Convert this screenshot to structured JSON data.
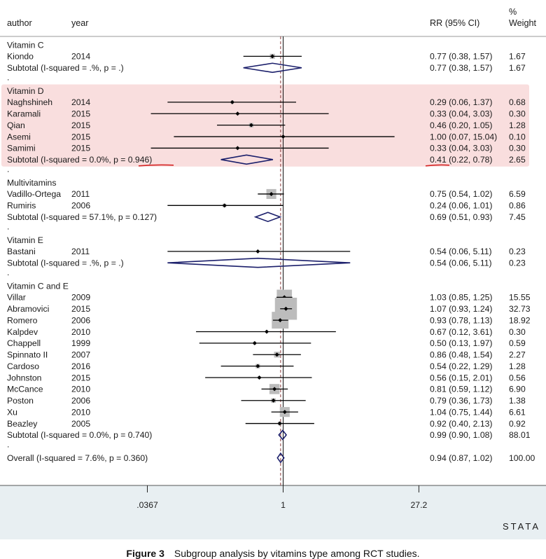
{
  "headers": {
    "author": "author",
    "year": "year",
    "rrci": "RR (95% CI)",
    "weight_top": "%",
    "weight_bottom": "Weight"
  },
  "axis": {
    "ticks": [
      {
        "value": 0.0367,
        "label": ".0367"
      },
      {
        "value": 1,
        "label": "1"
      },
      {
        "value": 27.2,
        "label": "27.2"
      }
    ],
    "scale": "log",
    "null_value": 1,
    "overall_value": 0.94
  },
  "watermark": "STATA",
  "highlight_color": "#f9dede",
  "colors": {
    "diamond": "#1b1f6b",
    "box": "#bcbcbc",
    "dashed": "#8a3a3a",
    "underline": "#d42323"
  },
  "caption": {
    "label": "Figure 3",
    "text": "Subgroup analysis by vitamins type among RCT studies."
  },
  "chart_data": {
    "type": "forest",
    "measure": "RR (95% CI)",
    "rows": [
      {
        "kind": "group",
        "label": "Vitamin C"
      },
      {
        "kind": "study",
        "author": "Kiondo",
        "year": "2014",
        "rr": 0.77,
        "lo": 0.38,
        "hi": 1.57,
        "ci": "0.77 (0.38, 1.57)",
        "weight": "1.67"
      },
      {
        "kind": "subtotal",
        "label": "Subtotal  (I-squared = .%, p = .)",
        "rr": 0.77,
        "lo": 0.38,
        "hi": 1.57,
        "ci": "0.77 (0.38, 1.57)",
        "weight": "1.67"
      },
      {
        "kind": "dot",
        "label": "."
      },
      {
        "kind": "group",
        "label": "Vitamin D"
      },
      {
        "kind": "study",
        "author": "Naghshineh",
        "year": "2014",
        "rr": 0.29,
        "lo": 0.06,
        "hi": 1.37,
        "ci": "0.29 (0.06, 1.37)",
        "weight": "0.68"
      },
      {
        "kind": "study",
        "author": "Karamali",
        "year": "2015",
        "rr": 0.33,
        "lo": 0.04,
        "hi": 3.03,
        "ci": "0.33 (0.04, 3.03)",
        "weight": "0.30"
      },
      {
        "kind": "study",
        "author": "Qian",
        "year": "2015",
        "rr": 0.46,
        "lo": 0.2,
        "hi": 1.05,
        "ci": "0.46 (0.20, 1.05)",
        "weight": "1.28"
      },
      {
        "kind": "study",
        "author": "Asemi",
        "year": "2015",
        "rr": 1.0,
        "lo": 0.07,
        "hi": 15.04,
        "ci": "1.00 (0.07, 15.04)",
        "weight": "0.10"
      },
      {
        "kind": "study",
        "author": "Samimi",
        "year": "2015",
        "rr": 0.33,
        "lo": 0.04,
        "hi": 3.03,
        "ci": "0.33 (0.04, 3.03)",
        "weight": "0.30"
      },
      {
        "kind": "subtotal",
        "label": "Subtotal  (I-squared = 0.0%, p = 0.946)",
        "rr": 0.41,
        "lo": 0.22,
        "hi": 0.78,
        "ci": "0.41 (0.22, 0.78)",
        "weight": "2.65"
      },
      {
        "kind": "dot",
        "label": "."
      },
      {
        "kind": "group",
        "label": "Multivitamins"
      },
      {
        "kind": "study",
        "author": "Vadillo-Ortega",
        "year": "2011",
        "rr": 0.75,
        "lo": 0.54,
        "hi": 1.02,
        "ci": "0.75 (0.54, 1.02)",
        "weight": "6.59"
      },
      {
        "kind": "study",
        "author": "Rumiris",
        "year": "2006",
        "rr": 0.24,
        "lo": 0.06,
        "hi": 1.01,
        "ci": "0.24 (0.06, 1.01)",
        "weight": "0.86"
      },
      {
        "kind": "subtotal",
        "label": "Subtotal  (I-squared = 57.1%, p = 0.127)",
        "rr": 0.69,
        "lo": 0.51,
        "hi": 0.93,
        "ci": "0.69 (0.51, 0.93)",
        "weight": "7.45"
      },
      {
        "kind": "dot",
        "label": "."
      },
      {
        "kind": "group",
        "label": "Vitamin E"
      },
      {
        "kind": "study",
        "author": "Bastani",
        "year": "2011",
        "rr": 0.54,
        "lo": 0.06,
        "hi": 5.11,
        "ci": "0.54 (0.06, 5.11)",
        "weight": "0.23"
      },
      {
        "kind": "subtotal",
        "label": "Subtotal  (I-squared = .%, p = .)",
        "rr": 0.54,
        "lo": 0.06,
        "hi": 5.11,
        "ci": "0.54 (0.06, 5.11)",
        "weight": "0.23"
      },
      {
        "kind": "dot",
        "label": "."
      },
      {
        "kind": "group",
        "label": "Vitamin C and E"
      },
      {
        "kind": "study",
        "author": "Villar",
        "year": "2009",
        "rr": 1.03,
        "lo": 0.85,
        "hi": 1.25,
        "ci": "1.03 (0.85, 1.25)",
        "weight": "15.55"
      },
      {
        "kind": "study",
        "author": "Abramovici",
        "year": "2015",
        "rr": 1.07,
        "lo": 0.93,
        "hi": 1.24,
        "ci": "1.07 (0.93, 1.24)",
        "weight": "32.73"
      },
      {
        "kind": "study",
        "author": "Romero",
        "year": "2006",
        "rr": 0.93,
        "lo": 0.78,
        "hi": 1.13,
        "ci": "0.93 (0.78, 1.13)",
        "weight": "18.92"
      },
      {
        "kind": "study",
        "author": "Kalpdev",
        "year": "2010",
        "rr": 0.67,
        "lo": 0.12,
        "hi": 3.61,
        "ci": "0.67 (0.12, 3.61)",
        "weight": "0.30"
      },
      {
        "kind": "study",
        "author": "Chappell",
        "year": "1999",
        "rr": 0.5,
        "lo": 0.13,
        "hi": 1.97,
        "ci": "0.50 (0.13, 1.97)",
        "weight": "0.59"
      },
      {
        "kind": "study",
        "author": "Spinnato II",
        "year": "2007",
        "rr": 0.86,
        "lo": 0.48,
        "hi": 1.54,
        "ci": "0.86 (0.48, 1.54)",
        "weight": "2.27"
      },
      {
        "kind": "study",
        "author": "Cardoso",
        "year": "2016",
        "rr": 0.54,
        "lo": 0.22,
        "hi": 1.29,
        "ci": "0.54 (0.22, 1.29)",
        "weight": "1.28"
      },
      {
        "kind": "study",
        "author": "Johnston",
        "year": "2015",
        "rr": 0.56,
        "lo": 0.15,
        "hi": 2.01,
        "ci": "0.56 (0.15, 2.01)",
        "weight": "0.56"
      },
      {
        "kind": "study",
        "author": "McCance",
        "year": "2010",
        "rr": 0.81,
        "lo": 0.59,
        "hi": 1.12,
        "ci": "0.81 (0.59, 1.12)",
        "weight": "6.90"
      },
      {
        "kind": "study",
        "author": "Poston",
        "year": "2006",
        "rr": 0.79,
        "lo": 0.36,
        "hi": 1.73,
        "ci": "0.79 (0.36, 1.73)",
        "weight": "1.38"
      },
      {
        "kind": "study",
        "author": "Xu",
        "year": "2010",
        "rr": 1.04,
        "lo": 0.75,
        "hi": 1.44,
        "ci": "1.04 (0.75, 1.44)",
        "weight": "6.61"
      },
      {
        "kind": "study",
        "author": "Beazley",
        "year": "2005",
        "rr": 0.92,
        "lo": 0.4,
        "hi": 2.13,
        "ci": "0.92 (0.40, 2.13)",
        "weight": "0.92"
      },
      {
        "kind": "subtotal",
        "label": "Subtotal  (I-squared = 0.0%, p = 0.740)",
        "rr": 0.99,
        "lo": 0.9,
        "hi": 1.08,
        "ci": "0.99 (0.90, 1.08)",
        "weight": "88.01"
      },
      {
        "kind": "dot",
        "label": "."
      },
      {
        "kind": "overall",
        "label": "Overall  (I-squared = 7.6%, p = 0.360)",
        "rr": 0.94,
        "lo": 0.87,
        "hi": 1.02,
        "ci": "0.94 (0.87, 1.02)",
        "weight": "100.00"
      }
    ]
  }
}
